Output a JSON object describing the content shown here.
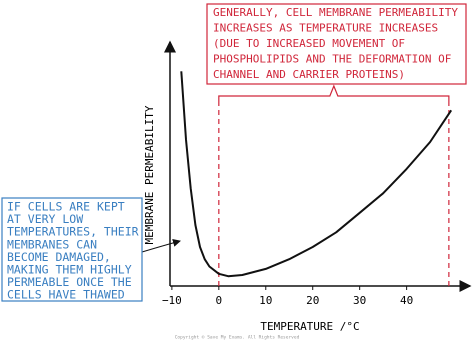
{
  "chart_data": {
    "type": "line",
    "x": [
      -8,
      -7,
      -6,
      -5,
      -4,
      -3,
      -2,
      0,
      2,
      5,
      10,
      15,
      20,
      25,
      30,
      35,
      40,
      45,
      49.5
    ],
    "values": [
      88,
      60,
      40,
      25,
      16,
      11,
      8,
      5,
      4,
      4.5,
      7,
      11,
      16,
      22,
      30,
      38,
      48,
      59,
      72
    ],
    "color": "#111111",
    "xlim": [
      -10.4,
      53.5
    ],
    "xticks": [
      {
        "value": -10,
        "label": "−10"
      },
      0,
      10,
      20,
      30,
      40
    ],
    "ylim": [
      0,
      100
    ],
    "xlabel": "TEMPERATURE /°C",
    "ylabel": "MEMBRANE PERMEABILITY",
    "highlight_range": [
      0,
      49
    ],
    "annotations": [
      {
        "lines": [
          "GENERALLY, CELL MEMBRANE PERMEABILITY",
          "INCREASES AS TEMPERATURE INCREASES",
          "(DUE TO INCREASED MOVEMENT OF",
          "PHOSPHOLIPIDS AND THE DEFORMATION OF",
          "CHANNEL AND CARRIER PROTEINS)"
        ],
        "color": "#d0263a"
      },
      {
        "lines": [
          "IF CELLS ARE KEPT",
          "AT VERY LOW",
          "TEMPERATURES, THEIR",
          "MEMBRANES CAN",
          "BECOME DAMAGED,",
          "MAKING THEM HIGHLY",
          "PERMEABLE ONCE THE",
          "CELLS HAVE THAWED"
        ],
        "color": "#3a7fc1"
      }
    ],
    "footer": "Copyright © Save My Exams. All Rights Reserved"
  }
}
